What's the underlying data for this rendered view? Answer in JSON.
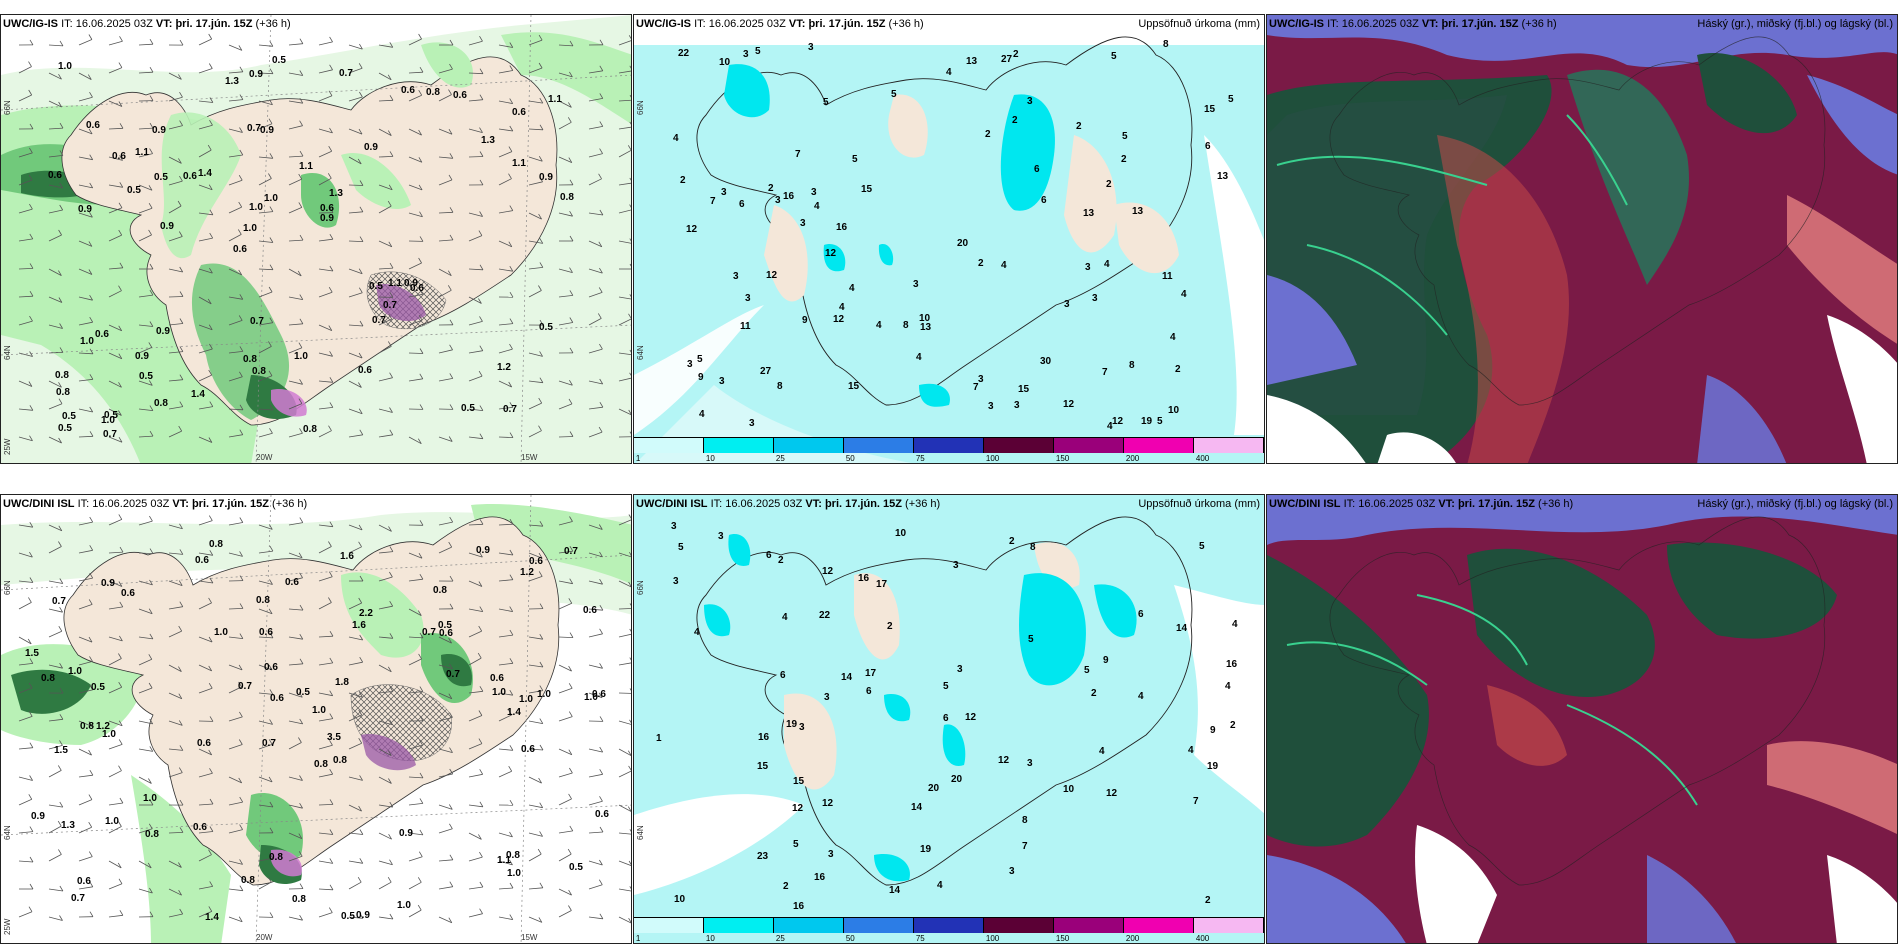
{
  "colors": {
    "land": "#f4e7d9",
    "precip_light": "#b9f1b6",
    "precip_mid": "#71c97b",
    "precip_dark": "#2f7a42",
    "precip_heavy": "#0e4b26",
    "snow": "#9a58a6",
    "pink": "#d07ad1",
    "cyan_light": "#b4f5f5",
    "cyan_mid": "#00e7ef",
    "cloud_high": "#8a1d4a",
    "cloud_mid": "#6c70d0",
    "cloud_low": "#1f4f3b"
  },
  "panels": {
    "p1": {
      "model": "UWC/IG-IS",
      "it_label": "IT:",
      "it_value": "16.06.2025 03Z",
      "vt_label": "VT:",
      "vt_value": "þri. 17.jún. 15Z",
      "lead": "(+36 h)",
      "lat_66": "66N",
      "lat_64": "64N",
      "lat_25w": "25W",
      "lon_20": "20W",
      "lon_15": "15W",
      "labels": [
        "0.7",
        "0.9",
        "0.6",
        "0.6",
        "0.9",
        "0.5",
        "0.7",
        "1.1",
        "0.6",
        "1.4",
        "0.8",
        "0.5",
        "0.9",
        "1.3",
        "0.6",
        "0.6",
        "0.9",
        "0.8",
        "0.5",
        "1.1",
        "1.0",
        "0.8",
        "1.0",
        "0.9",
        "0.6",
        "0.9",
        "0.5",
        "1.2",
        "0.9",
        "0.8",
        "0.6",
        "0.5",
        "0.7",
        "0.8",
        "0.9",
        "0.6",
        "0.5",
        "0.8",
        "0.9",
        "1.0",
        "1.3",
        "1.1",
        "0.7",
        "0.6",
        "0.9",
        "0.7",
        "0.5",
        "1.0",
        "0.6",
        "0.5",
        "0.9",
        "0.6",
        "1.1",
        "0.8",
        "1.0",
        "0.7",
        "1.3",
        "1.0",
        "0.5",
        "0.7",
        "1.4",
        "1.1",
        "0.5",
        "0.8",
        "1.0",
        "0.6"
      ]
    },
    "p2": {
      "model": "UWC/IG-IS",
      "it_label": "IT:",
      "it_value": "16.06.2025 03Z",
      "vt_label": "VT:",
      "vt_value": "þri. 17.jún. 15Z",
      "lead": "(+36 h)",
      "right_title": "Uppsöfnuð úrkoma (mm)",
      "lat_66": "66N",
      "lat_64": "64N",
      "labels": [
        "3",
        "3",
        "3",
        "4",
        "5",
        "5",
        "8",
        "12",
        "12",
        "13",
        "13",
        "13",
        "22",
        "12",
        "16",
        "30",
        "20",
        "13",
        "15",
        "15",
        "19",
        "16",
        "15",
        "9",
        "8",
        "6",
        "7",
        "5",
        "5",
        "3",
        "4",
        "4",
        "3",
        "4",
        "2",
        "2",
        "3",
        "5",
        "12",
        "15",
        "12",
        "10",
        "11",
        "12",
        "13",
        "9",
        "10",
        "7",
        "3",
        "3",
        "3",
        "2",
        "4",
        "5",
        "6",
        "6",
        "8",
        "10",
        "11",
        "27",
        "27",
        "5",
        "4",
        "3",
        "7",
        "7",
        "8",
        "2",
        "3",
        "4",
        "3",
        "2",
        "4",
        "2",
        "2",
        "3",
        "4",
        "6",
        "5",
        "4",
        "4",
        "4",
        "3",
        "2",
        "3",
        "3",
        "4",
        "2",
        "5",
        "3",
        "2",
        "3",
        "3"
      ]
    },
    "p3": {
      "model": "UWC/IG-IS",
      "it_label": "IT:",
      "it_value": "16.06.2025 03Z",
      "vt_label": "VT:",
      "vt_value": "þri. 17.jún. 15Z",
      "lead": "(+36 h)",
      "right_title": "Háský (gr.), miðský (fj.bl.) og lágský (bl.)"
    },
    "p4": {
      "model": "UWC/DINI ISL",
      "it_label": "IT:",
      "it_value": "16.06.2025 03Z",
      "vt_label": "VT:",
      "vt_value": "þri. 17.jún. 15Z",
      "lead": "(+36 h)",
      "lat_66": "66N",
      "lat_64": "64N",
      "lat_25w": "25W",
      "lon_20": "20W",
      "lon_15": "15W",
      "labels": [
        "0.8",
        "0.8",
        "1.0",
        "0.7",
        "0.8",
        "1.2",
        "0.7",
        "0.7",
        "1.5",
        "1.6",
        "1.0",
        "0.7",
        "0.6",
        "0.6",
        "0.5",
        "0.9",
        "0.8",
        "0.9",
        "0.7",
        "1.0",
        "0.5",
        "0.8",
        "0.6",
        "1.0",
        "0.9",
        "1.0",
        "0.6",
        "1.0",
        "0.8",
        "1.3",
        "1.1",
        "2.2",
        "1.0",
        "0.7",
        "0.9",
        "0.6",
        "0.6",
        "0.8",
        "0.7",
        "0.6",
        "0.6",
        "1.4",
        "1.0",
        "0.9",
        "0.8",
        "0.6",
        "1.0",
        "0.5",
        "1.5",
        "3.5",
        "0.8",
        "1.4",
        "1.8",
        "1.2",
        "1.6",
        "0.8",
        "0.6",
        "0.5",
        "0.6",
        "0.6",
        "0.5",
        "0.6",
        "0.6",
        "0.6",
        "0.8",
        "0.8",
        "1.0",
        "1.0",
        "1.0",
        "0.6"
      ]
    },
    "p5": {
      "model": "UWC/DINI ISL",
      "it_label": "IT:",
      "it_value": "16.06.2025 03Z",
      "vt_label": "VT:",
      "vt_value": "þri. 17.jún. 15Z",
      "lead": "(+36 h)",
      "right_title": "Uppsöfnuð úrkoma (mm)",
      "lat_66": "66N",
      "lat_64": "64N",
      "labels": [
        "5",
        "3",
        "1",
        "5",
        "4",
        "8",
        "17",
        "12",
        "10",
        "10",
        "12",
        "12",
        "16",
        "15",
        "20",
        "14",
        "14",
        "23",
        "22",
        "17",
        "16",
        "19",
        "16",
        "19",
        "16",
        "20",
        "15",
        "12",
        "14",
        "16",
        "12",
        "12",
        "14",
        "19",
        "6",
        "6",
        "6",
        "6",
        "7",
        "5",
        "4",
        "4",
        "3",
        "2",
        "3",
        "3",
        "5",
        "4",
        "3",
        "4",
        "2",
        "3",
        "2",
        "4",
        "4",
        "3",
        "2",
        "5",
        "6",
        "10",
        "9",
        "9",
        "8",
        "7",
        "5",
        "4",
        "3",
        "3",
        "2",
        "2",
        "2",
        "3"
      ]
    },
    "p6": {
      "model": "UWC/DINI ISL",
      "it_label": "IT:",
      "it_value": "16.06.2025 03Z",
      "vt_label": "VT:",
      "vt_value": "þri. 17.jún. 15Z",
      "lead": "(+36 h)",
      "right_title": "Háský (gr.), miðský (fj.bl.) og lágský (bl.)"
    }
  },
  "legend": {
    "ticks": [
      "1",
      "10",
      "25",
      "50",
      "75",
      "100",
      "150",
      "200",
      "400"
    ],
    "colors": [
      "#d1fbfb",
      "#00eef1",
      "#00c8ee",
      "#2c7de6",
      "#2232b6",
      "#5b0035",
      "#9a007a",
      "#f000b0",
      "#f6b8f2"
    ]
  }
}
